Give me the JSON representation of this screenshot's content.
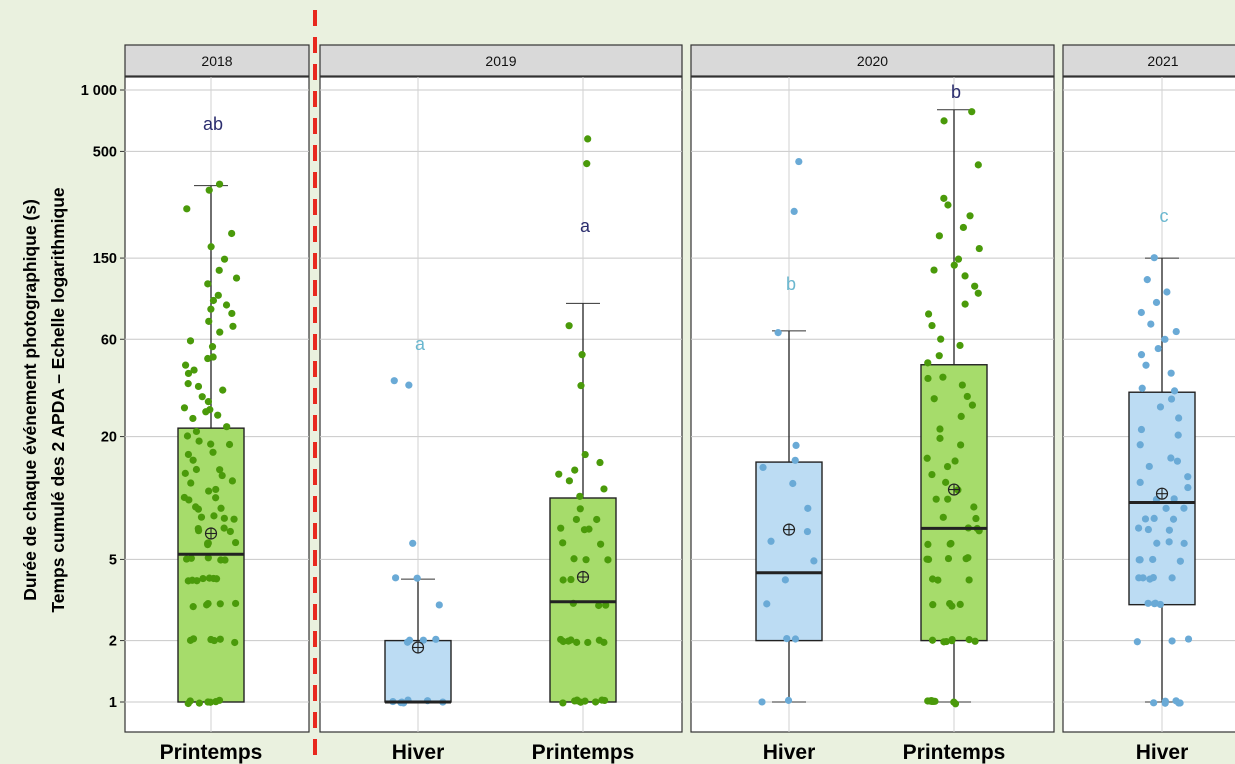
{
  "chart_data": {
    "type": "boxplot",
    "ylabel_line1": "Durée de chaque événement photographique (s)",
    "ylabel_line2": "Temps cumulé des 2 APDA – Echelle logarithmique",
    "y_scale": "log",
    "ylim": [
      0.85,
      1100
    ],
    "y_ticks": [
      1,
      2,
      5,
      20,
      60,
      150,
      500,
      1000
    ],
    "y_tick_labels": [
      "1",
      "2",
      "5",
      "20",
      "60",
      "150",
      "500",
      "1 000"
    ],
    "grid": true,
    "separator": "dashed red line after 2018 panel",
    "colors": {
      "printemps_fill": "#a6dc6b",
      "printemps_point": "#4a9a0a",
      "hiver_fill": "#bcdcf3",
      "hiver_point": "#6aaad6",
      "letter_dark": "#2b2d6e",
      "letter_light": "#6ab7cf",
      "separator": "#e8281e",
      "strip": "#d9d9d9"
    },
    "panels": [
      {
        "year": "2018",
        "groups": [
          {
            "season": "Printemps",
            "letter": "ab",
            "letter_color": "dark",
            "min": 1,
            "q1": 1,
            "median": 5.3,
            "q3": 22,
            "max": 340,
            "mean": 6.7,
            "points": [
              1,
              1,
              1,
              1,
              1,
              1,
              1,
              2,
              2,
              2,
              2,
              2,
              2,
              3,
              3,
              3,
              3,
              3,
              4,
              4,
              4,
              4,
              4,
              4,
              4,
              5,
              5,
              5,
              5,
              5,
              6,
              6,
              6,
              6,
              7,
              7,
              7,
              7,
              8,
              8,
              8,
              8,
              9,
              9,
              9,
              10,
              10,
              10,
              11,
              11,
              12,
              12,
              13,
              13,
              14,
              14,
              15,
              16,
              17,
              18,
              18,
              19,
              20,
              21,
              22,
              24,
              25,
              26,
              27,
              28,
              30,
              32,
              34,
              35,
              37,
              40,
              42,
              45,
              48,
              50,
              55,
              60,
              65,
              70,
              75,
              80,
              85,
              90,
              95,
              100,
              110,
              120,
              130,
              150,
              170,
              200,
              260,
              330,
              340
            ]
          }
        ]
      },
      {
        "year": "2019",
        "groups": [
          {
            "season": "Hiver",
            "letter": "a",
            "letter_color": "light",
            "min": 1,
            "q1": 1,
            "median": 1,
            "q3": 2,
            "max": 4,
            "mean": 1.85,
            "points": [
              1,
              1,
              1,
              1,
              1,
              1,
              1,
              2,
              2,
              2,
              2,
              3,
              4,
              4,
              6,
              35,
              38
            ]
          },
          {
            "season": "Printemps",
            "letter": "a",
            "letter_color": "dark",
            "min": 1,
            "q1": 1,
            "median": 3.1,
            "q3": 10,
            "max": 90,
            "mean": 4.1,
            "points": [
              1,
              1,
              1,
              1,
              1,
              1,
              1,
              1,
              1,
              2,
              2,
              2,
              2,
              2,
              2,
              2,
              2,
              3,
              3,
              3,
              4,
              4,
              5,
              5,
              5,
              6,
              6,
              7,
              7,
              7,
              8,
              8,
              9,
              10,
              11,
              12,
              13,
              14,
              15,
              16,
              35,
              50,
              70,
              430,
              580
            ]
          }
        ]
      },
      {
        "year": "2020",
        "groups": [
          {
            "season": "Hiver",
            "letter": "b",
            "letter_color": "light",
            "min": 1,
            "q1": 2,
            "median": 4.3,
            "q3": 15,
            "max": 66,
            "mean": 7,
            "points": [
              1,
              1,
              2,
              2,
              3,
              4,
              5,
              6,
              7,
              9,
              12,
              14,
              15,
              18,
              66,
              250,
              450
            ]
          },
          {
            "season": "Printemps",
            "letter": "b",
            "letter_color": "dark",
            "min": 1,
            "q1": 2,
            "median": 7.1,
            "q3": 45,
            "max": 800,
            "mean": 11,
            "points": [
              1,
              1,
              1,
              1,
              1,
              1,
              1,
              1,
              1,
              2,
              2,
              2,
              2,
              2,
              2,
              2,
              3,
              3,
              3,
              3,
              4,
              4,
              4,
              5,
              5,
              5,
              5,
              5,
              6,
              6,
              6,
              7,
              7,
              7,
              8,
              8,
              9,
              10,
              10,
              11,
              12,
              13,
              14,
              15,
              16,
              18,
              20,
              22,
              25,
              28,
              30,
              32,
              35,
              38,
              40,
              45,
              50,
              55,
              60,
              70,
              80,
              90,
              100,
              110,
              120,
              130,
              140,
              150,
              170,
              190,
              210,
              240,
              270,
              300,
              420,
              700,
              800
            ]
          }
        ]
      },
      {
        "year": "2021",
        "groups": [
          {
            "season": "Hiver",
            "letter": "c",
            "letter_color": "light",
            "min": 1,
            "q1": 3,
            "median": 9.5,
            "q3": 33,
            "max": 150,
            "mean": 10.5,
            "points": [
              1,
              1,
              1,
              1,
              1,
              1,
              2,
              2,
              2,
              3,
              3,
              3,
              3,
              4,
              4,
              4,
              4,
              4,
              5,
              5,
              5,
              5,
              6,
              6,
              6,
              7,
              7,
              7,
              8,
              8,
              8,
              9,
              9,
              10,
              10,
              11,
              12,
              13,
              14,
              15,
              16,
              18,
              20,
              22,
              25,
              28,
              30,
              33,
              35,
              40,
              45,
              50,
              55,
              60,
              65,
              70,
              80,
              90,
              100,
              120,
              150
            ]
          }
        ]
      }
    ]
  }
}
